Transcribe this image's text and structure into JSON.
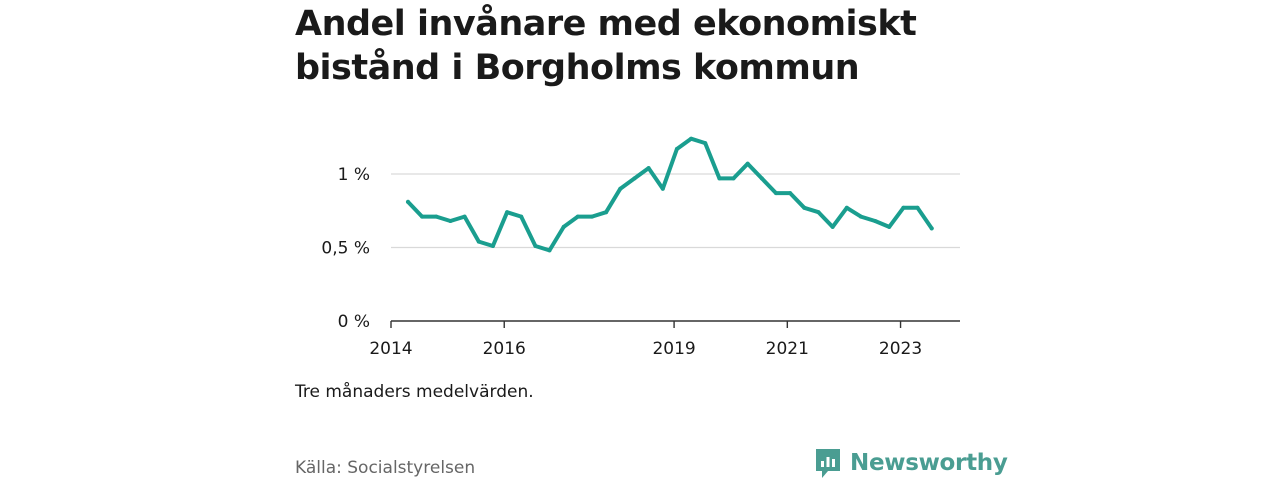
{
  "title": "Andel invånare med ekonomiskt bistånd i Borgholms kommun",
  "note": "Tre månaders medelvärden.",
  "source": "Källa: Socialstyrelsen",
  "brand": {
    "name": "Newsworthy",
    "color": "#4a9d92"
  },
  "chart_data": {
    "type": "line",
    "line_color": "#1a9e8f",
    "grid": true,
    "xlim": [
      2014,
      2024.05
    ],
    "ylim": [
      0,
      1.25
    ],
    "x_ticks": [
      {
        "value": 2014,
        "label": "2014"
      },
      {
        "value": 2016,
        "label": "2016"
      },
      {
        "value": 2019,
        "label": "2019"
      },
      {
        "value": 2021,
        "label": "2021"
      },
      {
        "value": 2023,
        "label": "2023"
      }
    ],
    "y_ticks": [
      {
        "value": 0,
        "label": "0 %"
      },
      {
        "value": 0.5,
        "label": "0,5 %"
      },
      {
        "value": 1,
        "label": "1 %"
      }
    ],
    "series": [
      {
        "x": [
          2014.3,
          2014.55,
          2014.8,
          2015.05,
          2015.3,
          2015.55,
          2015.8,
          2016.05,
          2016.3,
          2016.55,
          2016.8,
          2017.05,
          2017.3,
          2017.55,
          2017.8,
          2018.05,
          2018.3,
          2018.55,
          2018.8,
          2019.05,
          2019.3,
          2019.55,
          2019.8,
          2020.05,
          2020.3,
          2020.55,
          2020.8,
          2021.05,
          2021.3,
          2021.55,
          2021.8,
          2022.05,
          2022.3,
          2022.55,
          2022.8,
          2023.05,
          2023.3,
          2023.55
        ],
        "y": [
          0.81,
          0.71,
          0.71,
          0.68,
          0.71,
          0.54,
          0.51,
          0.74,
          0.71,
          0.51,
          0.48,
          0.64,
          0.71,
          0.71,
          0.74,
          0.9,
          0.97,
          1.04,
          0.9,
          1.17,
          1.24,
          1.21,
          0.97,
          0.97,
          1.07,
          0.97,
          0.87,
          0.87,
          0.77,
          0.74,
          0.64,
          0.77,
          0.71,
          0.68,
          0.64,
          0.77,
          0.77,
          0.63
        ]
      }
    ]
  }
}
